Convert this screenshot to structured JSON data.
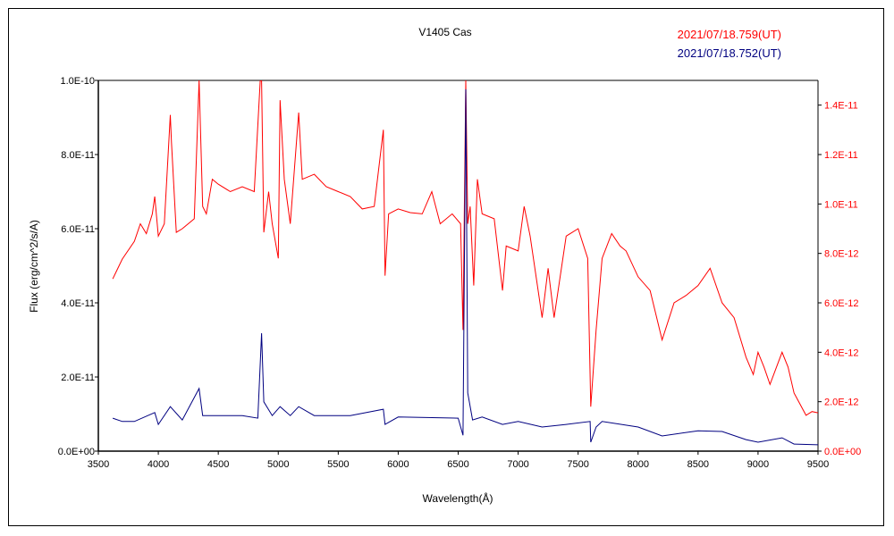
{
  "chart_data": {
    "type": "line",
    "title": "V1405 Cas",
    "xlabel": "Wavelength(Å)",
    "ylabel": "Flux (erg/cm^2/s/A)",
    "xlim": [
      3500,
      9500
    ],
    "ylim": [
      0,
      1e-10
    ],
    "y2lim": [
      0,
      1.5e-11
    ],
    "grid": false,
    "legend_position": "top-right",
    "x_ticks": [
      "3500",
      "4000",
      "4500",
      "5000",
      "5500",
      "6000",
      "6500",
      "7000",
      "7500",
      "8000",
      "8500",
      "9000",
      "9500"
    ],
    "y_ticks": [
      "0.0E+00",
      "2.0E-11",
      "4.0E-11",
      "6.0E-11",
      "8.0E-11",
      "1.0E-10"
    ],
    "y2_ticks": [
      "0.0E+00",
      "2.0E-12",
      "4.0E-12",
      "6.0E-12",
      "8.0E-12",
      "1.0E-11",
      "1.2E-11",
      "1.4E-11"
    ],
    "series": [
      {
        "name": "2021/07/18.759(UT)",
        "color": "#ff0000",
        "axis": "right",
        "x": [
          3620,
          3700,
          3800,
          3850,
          3900,
          3950,
          3970,
          4000,
          4050,
          4100,
          4110,
          4150,
          4200,
          4300,
          4340,
          4370,
          4400,
          4450,
          4500,
          4600,
          4700,
          4800,
          4850,
          4861,
          4880,
          4920,
          4950,
          5000,
          5015,
          5050,
          5100,
          5170,
          5200,
          5300,
          5400,
          5500,
          5600,
          5700,
          5800,
          5876,
          5890,
          5920,
          6000,
          6100,
          6200,
          6280,
          6350,
          6450,
          6520,
          6540,
          6563,
          6580,
          6600,
          6630,
          6660,
          6700,
          6800,
          6870,
          6900,
          7000,
          7050,
          7100,
          7200,
          7250,
          7300,
          7400,
          7500,
          7580,
          7605,
          7650,
          7700,
          7780,
          7850,
          7900,
          8000,
          8100,
          8200,
          8300,
          8400,
          8500,
          8600,
          8700,
          8800,
          8900,
          8960,
          9000,
          9050,
          9100,
          9200,
          9250,
          9300,
          9400,
          9450,
          9500
        ],
        "y": [
          6.97e-12,
          7.77e-12,
          8.49e-12,
          9.2e-12,
          8.8e-12,
          9.6e-12,
          1.03e-11,
          8.7e-12,
          9.2e-12,
          1.36e-11,
          1.25e-11,
          8.85e-12,
          9e-12,
          9.4e-12,
          1.5e-11,
          9.9e-12,
          9.6e-12,
          1.1e-11,
          1.08e-11,
          1.05e-11,
          1.07e-11,
          1.05e-11,
          1.5e-11,
          1.5e-11,
          8.85e-12,
          1.05e-11,
          9.2e-12,
          7.8e-12,
          1.42e-11,
          1.1e-11,
          9.2e-12,
          1.37e-11,
          1.1e-11,
          1.12e-11,
          1.07e-11,
          1.05e-11,
          1.03e-11,
          9.8e-12,
          9.9e-12,
          1.3e-11,
          7.1e-12,
          9.6e-12,
          9.8e-12,
          9.65e-12,
          9.6e-12,
          1.05e-11,
          9.2e-12,
          9.6e-12,
          9.2e-12,
          4.9e-12,
          1.5e-11,
          9.2e-12,
          9.9e-12,
          6.7e-12,
          1.1e-11,
          9.6e-12,
          9.4e-12,
          6.5e-12,
          8.3e-12,
          8.1e-12,
          9.9e-12,
          8.7e-12,
          5.4e-12,
          7.4e-12,
          5.4e-12,
          8.7e-12,
          9e-12,
          7.8e-12,
          1.8e-12,
          4.9e-12,
          7.8e-12,
          8.8e-12,
          8.3e-12,
          8.1e-12,
          7.05e-12,
          6.5e-12,
          4.5e-12,
          6e-12,
          6.3e-12,
          6.7e-12,
          7.4e-12,
          6e-12,
          5.4e-12,
          3.8e-12,
          3.1e-12,
          4e-12,
          3.4e-12,
          2.7e-12,
          4e-12,
          3.4e-12,
          2.35e-12,
          1.45e-12,
          1.6e-12,
          1.55e-12
        ]
      },
      {
        "name": "2021/07/18.752(UT)",
        "color": "#000080",
        "axis": "left",
        "x": [
          3620,
          3700,
          3800,
          3970,
          4000,
          4100,
          4200,
          4340,
          4370,
          4500,
          4700,
          4830,
          4861,
          4880,
          4950,
          5015,
          5100,
          5170,
          5300,
          5600,
          5876,
          5890,
          6000,
          6500,
          6540,
          6563,
          6580,
          6620,
          6700,
          6870,
          7000,
          7200,
          7400,
          7600,
          7605,
          7650,
          7700,
          8000,
          8200,
          8500,
          8700,
          8900,
          9000,
          9200,
          9300,
          9500
        ],
        "y": [
          8.9e-12,
          8e-12,
          8e-12,
          1.04e-11,
          7.2e-12,
          1.2e-11,
          8.4e-12,
          1.69e-11,
          9.6e-12,
          9.6e-12,
          9.6e-12,
          8.9e-12,
          3.18e-11,
          1.33e-11,
          9.6e-12,
          1.2e-11,
          9.6e-12,
          1.2e-11,
          9.6e-12,
          9.6e-12,
          1.13e-11,
          7.2e-12,
          9.2e-12,
          8.9e-12,
          4.3e-12,
          9.76e-11,
          1.57e-11,
          8.4e-12,
          9.2e-12,
          7.2e-12,
          8e-12,
          6.5e-12,
          7.2e-12,
          8e-12,
          2.4e-12,
          6.5e-12,
          8e-12,
          6.5e-12,
          4.1e-12,
          5.5e-12,
          5.3e-12,
          3.1e-12,
          2.4e-12,
          3.6e-12,
          1.9e-12,
          1.7e-12
        ]
      }
    ]
  }
}
